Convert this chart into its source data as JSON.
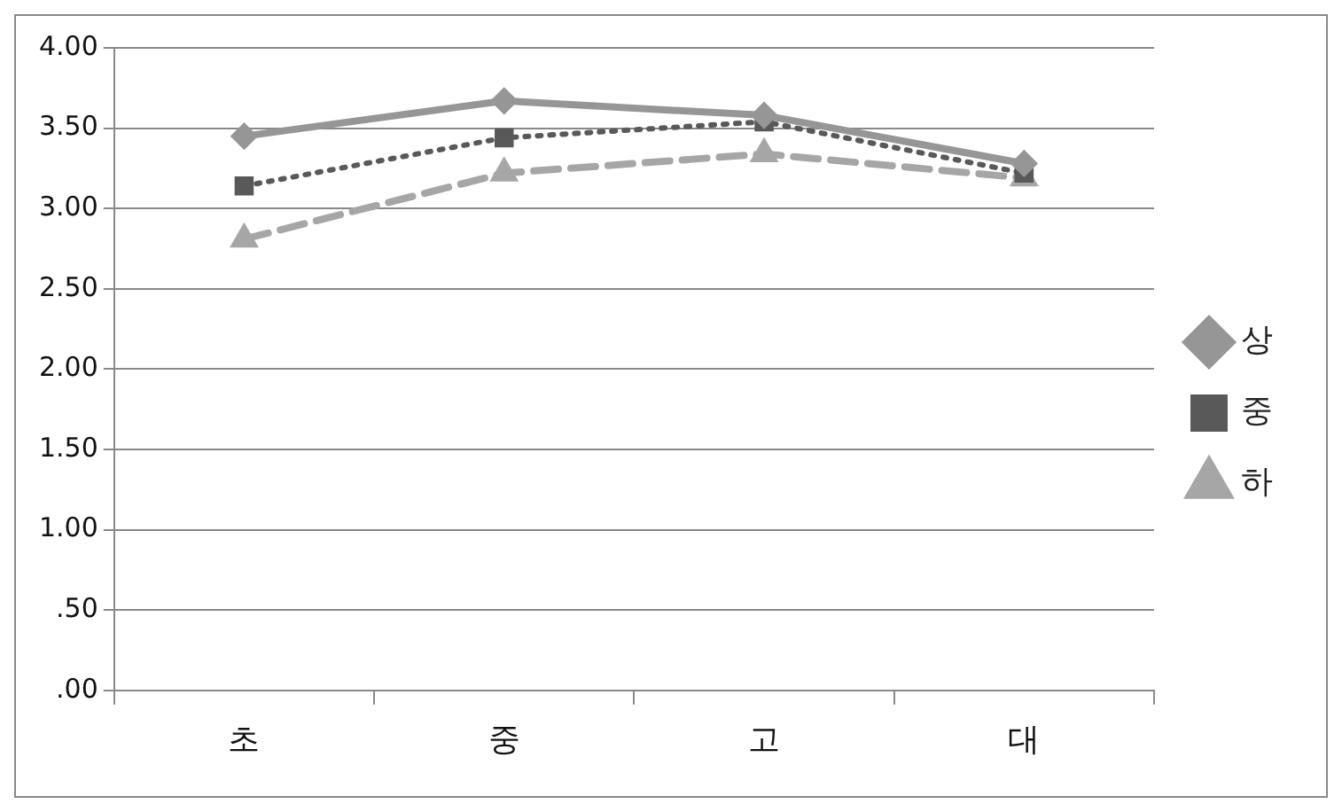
{
  "chart_data": {
    "type": "line",
    "categories": [
      "초",
      "중",
      "고",
      "대"
    ],
    "series": [
      {
        "name": "상",
        "color": "#969696",
        "values": [
          3.45,
          3.67,
          3.58,
          3.28
        ],
        "marker": "diamond",
        "line_style": "solid"
      },
      {
        "name": "중",
        "color": "#595959",
        "values": [
          3.14,
          3.44,
          3.54,
          3.22
        ],
        "marker": "square",
        "line_style": "dotted"
      },
      {
        "name": "하",
        "color": "#a6a6a6",
        "values": [
          2.81,
          3.22,
          3.34,
          3.19
        ],
        "marker": "triangle",
        "line_style": "dashed"
      }
    ],
    "ylim": [
      0,
      4
    ],
    "yticks": [
      {
        "value": 0,
        "label": ".00"
      },
      {
        "value": 0.5,
        "label": ".50"
      },
      {
        "value": 1,
        "label": "1.00"
      },
      {
        "value": 1.5,
        "label": "1.50"
      },
      {
        "value": 2,
        "label": "2.00"
      },
      {
        "value": 2.5,
        "label": "2.50"
      },
      {
        "value": 3,
        "label": "3.00"
      },
      {
        "value": 3.5,
        "label": "3.50"
      },
      {
        "value": 4,
        "label": "4.00"
      }
    ],
    "grid": "y",
    "legend": "right"
  }
}
